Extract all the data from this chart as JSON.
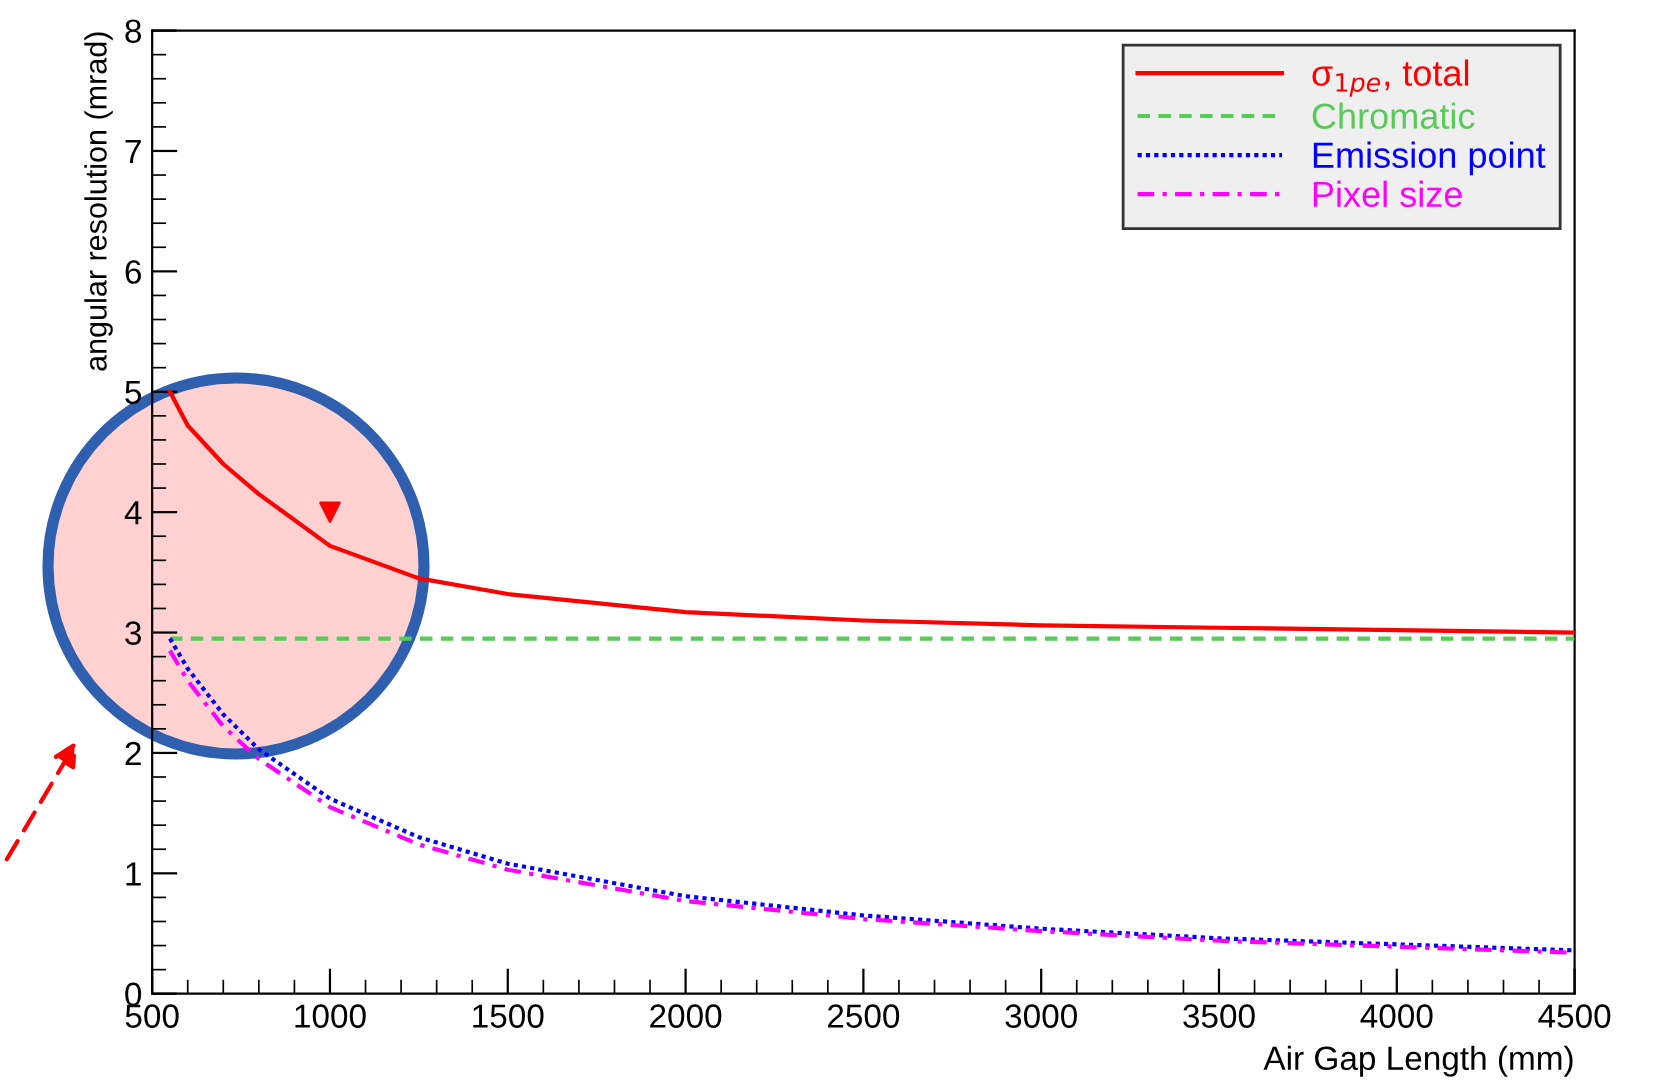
{
  "chart_data": {
    "type": "line",
    "xlabel": "Air Gap Length (mm)",
    "ylabel": "angular resolution (mrad)",
    "xlim": [
      500,
      4500
    ],
    "xticks": [
      500,
      1000,
      1500,
      2000,
      2500,
      3000,
      3500,
      4000,
      4500
    ],
    "ylim": [
      0,
      8
    ],
    "yticks": [
      0,
      1,
      2,
      3,
      4,
      5,
      6,
      7,
      8
    ],
    "grid": false,
    "legend": "top right",
    "x": [
      550,
      600,
      700,
      800,
      1000,
      1250,
      1500,
      2000,
      2500,
      3000,
      3500,
      4000,
      4500
    ],
    "series": [
      {
        "name": "σ$_{1pe}$, total",
        "color": "#ff0000",
        "line_style": "solid",
        "values": [
          5.0,
          4.72,
          4.4,
          4.15,
          3.72,
          3.45,
          3.32,
          3.17,
          3.1,
          3.06,
          3.04,
          3.02,
          3.0
        ]
      },
      {
        "name": "Chromatic",
        "color": "#55cc55",
        "line_style": "dashed",
        "values": [
          2.95,
          2.95,
          2.95,
          2.95,
          2.95,
          2.95,
          2.95,
          2.95,
          2.95,
          2.95,
          2.95,
          2.95,
          2.95
        ]
      },
      {
        "name": "Emission point",
        "color": "#0000ff",
        "line_style": "dotted",
        "values": [
          2.95,
          2.7,
          2.32,
          2.03,
          1.62,
          1.3,
          1.08,
          0.81,
          0.65,
          0.54,
          0.46,
          0.41,
          0.36
        ]
      },
      {
        "name": "Pixel size",
        "color": "#ff00ff",
        "line_style": "dashdot",
        "values": [
          2.85,
          2.6,
          2.22,
          1.95,
          1.55,
          1.24,
          1.03,
          0.77,
          0.62,
          0.52,
          0.44,
          0.39,
          0.34
        ]
      },
      {
        "type": "scatter",
        "marker": "triangle",
        "color": "#ff0000",
        "x": [
          1000
        ],
        "values": [
          4.0
        ]
      }
    ]
  }
}
